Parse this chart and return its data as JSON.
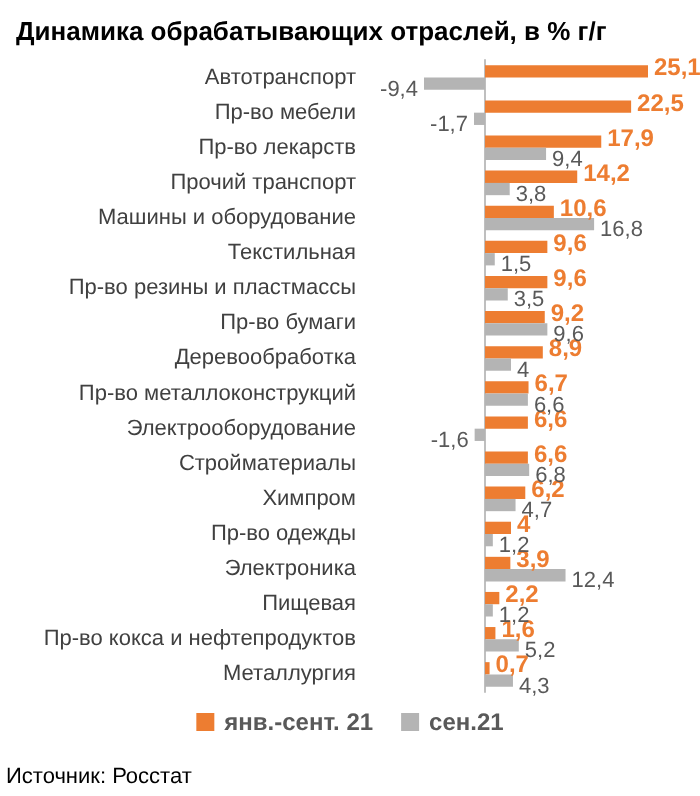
{
  "chart_data": {
    "type": "bar",
    "orientation": "horizontal",
    "title": "Динамика обрабатывающих отраслей, в % г/г",
    "categories": [
      "Автотранспорт",
      "Пр-во мебели",
      "Пр-во лекарств",
      "Прочий транспорт",
      "Машины и оборудование",
      "Текстильная",
      "Пр-во резины и пластмассы",
      "Пр-во бумаги",
      "Деревообработка",
      "Пр-во металлоконструкций",
      "Электрооборудование",
      "Стройматериалы",
      "Химпром",
      "Пр-во одежды",
      "Электроника",
      "Пищевая",
      "Пр-во кокса и нефтепродуктов",
      "Металлургия"
    ],
    "series": [
      {
        "name": "янв.-сент. 21",
        "color": "#ed7d31",
        "values": [
          25.1,
          22.5,
          17.9,
          14.2,
          10.6,
          9.6,
          9.6,
          9.2,
          8.9,
          6.7,
          6.6,
          6.6,
          6.2,
          4,
          3.9,
          2.2,
          1.6,
          0.7
        ],
        "value_labels": [
          "25,1",
          "22,5",
          "17,9",
          "14,2",
          "10,6",
          "9,6",
          "9,6",
          "9,2",
          "8,9",
          "6,7",
          "6,6",
          "6,6",
          "6,2",
          "4",
          "3,9",
          "2,2",
          "1,6",
          "0,7"
        ]
      },
      {
        "name": "сен.21",
        "color": "#b4b4b4",
        "values": [
          -9.4,
          -1.7,
          9.4,
          3.8,
          16.8,
          1.5,
          3.5,
          9.6,
          4,
          6.6,
          -1.6,
          6.8,
          4.7,
          1.2,
          12.4,
          1.2,
          5.2,
          4.3
        ],
        "value_labels": [
          "-9,4",
          "-1,7",
          "9,4",
          "3,8",
          "16,8",
          "1,5",
          "3,5",
          "9,6",
          "4",
          "6,6",
          "-1,6",
          "6,8",
          "4,7",
          "1,2",
          "12,4",
          "1,2",
          "5,2",
          "4,3"
        ]
      }
    ],
    "legend": "bottom",
    "grid": false,
    "tick_labels": "y",
    "annotations": [
      "Источник: Росстат"
    ]
  }
}
